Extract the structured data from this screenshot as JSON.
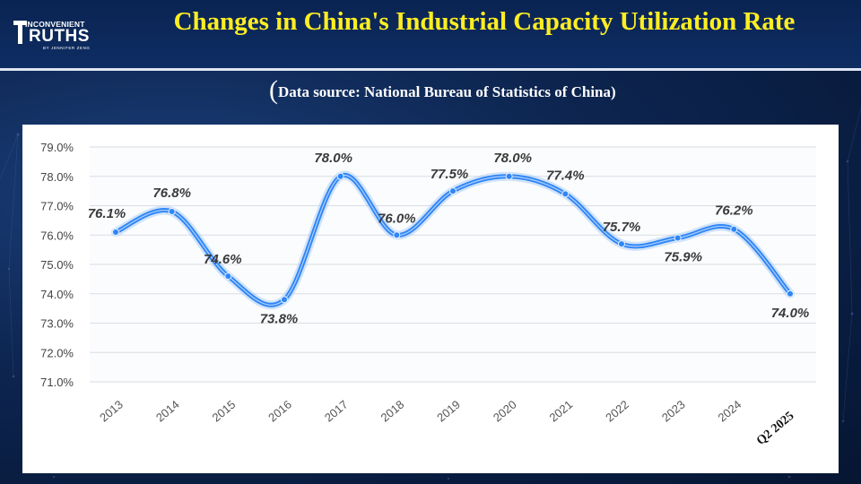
{
  "header": {
    "logo": {
      "top": "INCONVENIENT",
      "main": "RUTHS",
      "sub": "BY JENNIFER ZENG"
    },
    "title": "Changes in China's Industrial Capacity Utilization Rate",
    "source_open": "(",
    "source_text": "Data source: National Bureau of Statistics of China",
    "source_close": ")"
  },
  "colors": {
    "title": "#ffee22",
    "line": "#2f86f6",
    "background": "#0d2550"
  },
  "chart_data": {
    "type": "line",
    "title": "",
    "xlabel": "",
    "ylabel": "",
    "categories": [
      "2013",
      "2014",
      "2015",
      "2016",
      "2017",
      "2018",
      "2019",
      "2020",
      "2021",
      "2022",
      "2023",
      "2024",
      "Q2 2025"
    ],
    "values": [
      76.1,
      76.8,
      74.6,
      73.8,
      78.0,
      76.0,
      77.5,
      78.0,
      77.4,
      75.7,
      75.9,
      76.2,
      74.0
    ],
    "data_labels": [
      "76.1%",
      "76.8%",
      "74.6%",
      "73.8%",
      "78.0%",
      "76.0%",
      "77.5%",
      "78.0%",
      "77.4%",
      "75.7%",
      "75.9%",
      "76.2%",
      "74.0%"
    ],
    "ylim": [
      71.0,
      79.0
    ],
    "yticks": [
      "71.0%",
      "72.0%",
      "73.0%",
      "74.0%",
      "75.0%",
      "76.0%",
      "77.0%",
      "78.0%",
      "79.0%"
    ],
    "grid": true,
    "smooth": true,
    "legend": "none"
  }
}
